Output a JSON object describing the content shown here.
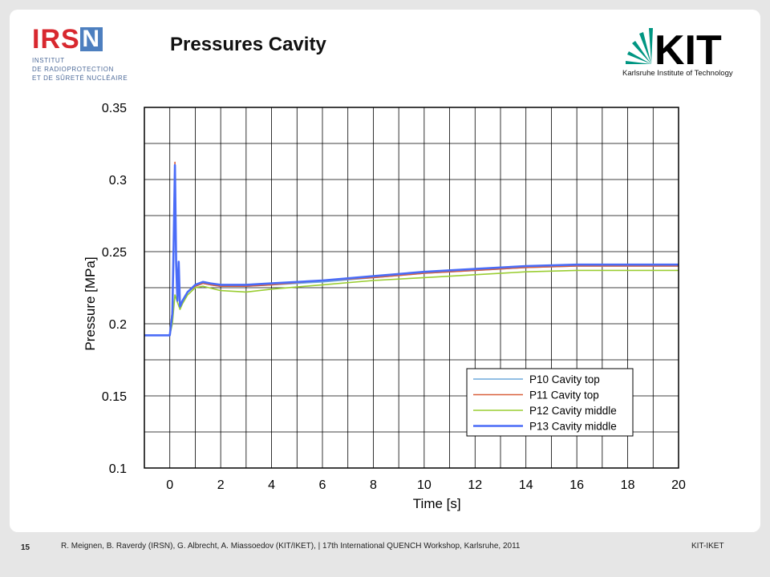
{
  "slide": {
    "title": "Pressures Cavity",
    "page_number": "15",
    "footer_text": "R. Meignen, B. Raverdy (IRSN), G. Albrecht, A. Miassoedov (KIT/IKET),  | 17th International QUENCH Workshop, Karlsruhe, 2011",
    "footer_right": "KIT-IKET"
  },
  "irsn_logo": {
    "mark_letters": "IRS",
    "mark_n": "N",
    "line1": "INSTITUT",
    "line2": "DE RADIOPROTECTION",
    "line3": "ET DE SÛRETÉ NUCLÉAIRE",
    "red": "#d8282f",
    "blue": "#4d7fbf"
  },
  "kit_logo": {
    "mark": "KIT",
    "subtitle": "Karlsruhe Institute of Technology",
    "green": "#009682"
  },
  "chart_data": {
    "type": "line",
    "xlabel": "Time [s]",
    "ylabel": "Pressure [MPa]",
    "xlim": [
      -1,
      20
    ],
    "ylim": [
      0.1,
      0.35
    ],
    "xticks": [
      0,
      2,
      4,
      6,
      8,
      10,
      12,
      14,
      16,
      18,
      20
    ],
    "yticks": [
      0.1,
      0.15,
      0.2,
      0.25,
      0.3,
      0.35
    ],
    "ytick_labels": [
      "0.1",
      "0.15",
      "0.2",
      "0.25",
      "0.3",
      "0.35"
    ],
    "grid": true,
    "legend_position": "bottom-right",
    "series": [
      {
        "name": "P10 Cavity top",
        "color": "#6fa8dc",
        "x": [
          -1,
          0,
          0.1,
          0.15,
          0.2,
          0.25,
          0.3,
          0.35,
          0.4,
          0.5,
          0.7,
          1.0,
          1.3,
          1.6,
          2,
          3,
          4,
          6,
          8,
          10,
          12,
          14,
          16,
          18,
          20
        ],
        "y": [
          0.192,
          0.192,
          0.205,
          0.25,
          0.305,
          0.24,
          0.215,
          0.235,
          0.21,
          0.215,
          0.222,
          0.226,
          0.228,
          0.227,
          0.226,
          0.226,
          0.227,
          0.229,
          0.232,
          0.235,
          0.237,
          0.239,
          0.24,
          0.24,
          0.24
        ]
      },
      {
        "name": "P11 Cavity top",
        "color": "#d9603b",
        "x": [
          -1,
          0,
          0.1,
          0.15,
          0.2,
          0.25,
          0.3,
          0.35,
          0.4,
          0.5,
          0.7,
          1.0,
          1.3,
          1.6,
          2,
          3,
          4,
          6,
          8,
          10,
          12,
          14,
          16,
          18,
          20
        ],
        "y": [
          0.192,
          0.192,
          0.21,
          0.26,
          0.312,
          0.245,
          0.218,
          0.232,
          0.212,
          0.216,
          0.222,
          0.226,
          0.228,
          0.227,
          0.226,
          0.226,
          0.227,
          0.23,
          0.232,
          0.235,
          0.237,
          0.239,
          0.24,
          0.24,
          0.24
        ]
      },
      {
        "name": "P12 Cavity middle",
        "color": "#9acd32",
        "x": [
          -1,
          0,
          0.1,
          0.2,
          0.3,
          0.4,
          0.5,
          0.7,
          1.0,
          1.3,
          2,
          3,
          4,
          6,
          8,
          10,
          12,
          14,
          16,
          18,
          20
        ],
        "y": [
          0.192,
          0.192,
          0.2,
          0.22,
          0.215,
          0.21,
          0.214,
          0.22,
          0.225,
          0.226,
          0.223,
          0.222,
          0.224,
          0.227,
          0.23,
          0.232,
          0.234,
          0.236,
          0.237,
          0.237,
          0.237
        ]
      },
      {
        "name": "P13 Cavity middle",
        "color": "#4a6cf7",
        "x": [
          -1,
          0,
          0.1,
          0.15,
          0.2,
          0.25,
          0.3,
          0.35,
          0.4,
          0.5,
          0.7,
          1.0,
          1.3,
          1.6,
          2,
          3,
          4,
          6,
          8,
          10,
          12,
          14,
          16,
          18,
          20
        ],
        "y": [
          0.192,
          0.192,
          0.207,
          0.255,
          0.31,
          0.242,
          0.216,
          0.243,
          0.212,
          0.216,
          0.222,
          0.227,
          0.229,
          0.228,
          0.227,
          0.227,
          0.228,
          0.23,
          0.233,
          0.236,
          0.238,
          0.24,
          0.241,
          0.241,
          0.241
        ]
      }
    ]
  }
}
